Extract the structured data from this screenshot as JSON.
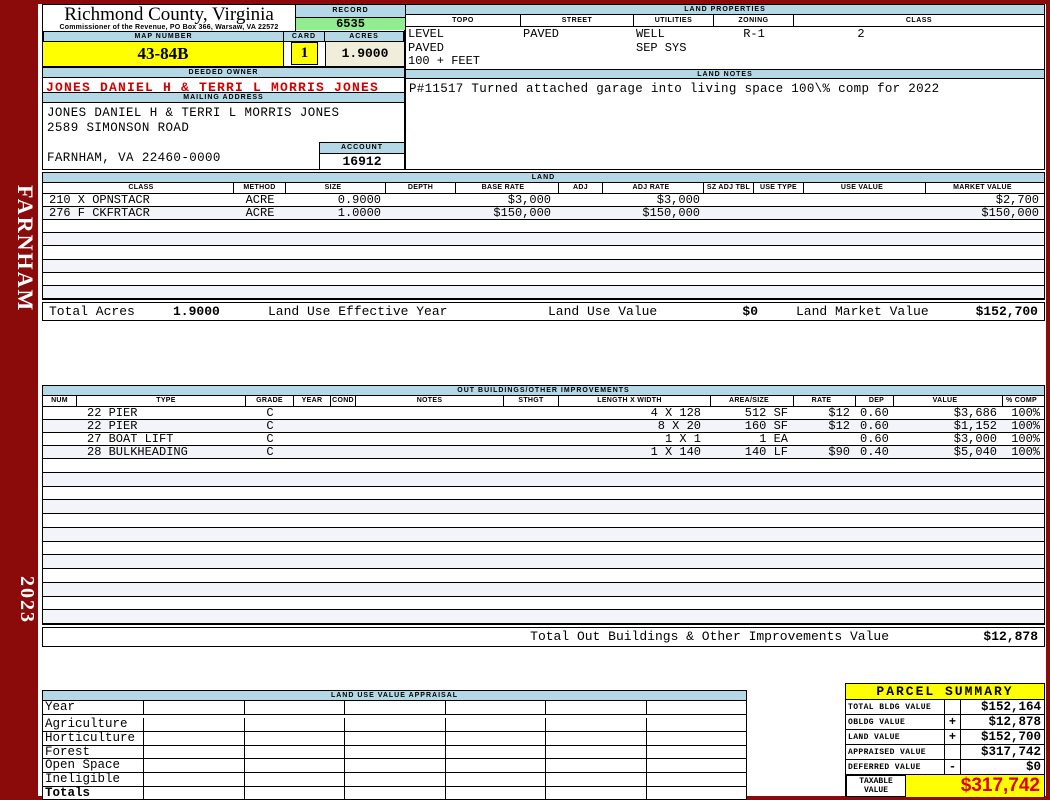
{
  "county": {
    "title": "Richmond County, Virginia",
    "subtitle": "Commissioner of the Revenue, PO Box 366, Warsaw, VA 22572"
  },
  "sidebar": {
    "district": "FARNHAM",
    "year": "2023"
  },
  "record": {
    "label": "RECORD",
    "value": "6535"
  },
  "map_number": {
    "label": "MAP NUMBER",
    "value": "43-84B"
  },
  "card": {
    "label": "CARD",
    "value": "1"
  },
  "acres": {
    "label": "ACRES",
    "value": "1.9000"
  },
  "deeded_owner": {
    "label": "DEEDED OWNER",
    "value": "JONES DANIEL H & TERRI L MORRIS JONES"
  },
  "mailing_address": {
    "label": "MAILING ADDRESS",
    "line1": "JONES DANIEL H & TERRI L MORRIS JONES",
    "line2": "2589 SIMONSON ROAD",
    "line3": "FARNHAM, VA 22460-0000"
  },
  "account": {
    "label": "ACCOUNT",
    "value": "16912"
  },
  "land_properties": {
    "title": "LAND PROPERTIES",
    "columns": [
      "TOPO",
      "STREET",
      "UTILITIES",
      "ZONING",
      "CLASS"
    ],
    "topo": [
      "LEVEL",
      "PAVED",
      "100 + FEET"
    ],
    "street": [
      "PAVED"
    ],
    "utilities": [
      "WELL",
      "SEP SYS"
    ],
    "zoning": [
      "R-1"
    ],
    "class_value": [
      "2"
    ]
  },
  "land_notes": {
    "title": "LAND NOTES",
    "note": "P#11517 Turned attached garage into living space 100\\% comp for 2022"
  },
  "land_table": {
    "title": "LAND",
    "columns": [
      "CLASS",
      "METHOD",
      "SIZE",
      "DEPTH",
      "BASE RATE",
      "ADJ",
      "ADJ RATE",
      "SZ ADJ TBL",
      "USE TYPE",
      "USE VALUE",
      "MARKET VALUE"
    ],
    "rows": [
      {
        "class": "210 X OPNSTACR",
        "method": "ACRE",
        "size": "0.9000",
        "depth": "",
        "base_rate": "$3,000",
        "adj": "",
        "adj_rate": "$3,000",
        "sz_adj_tbl": "",
        "use_type": "",
        "use_value": "",
        "market_value": "$2,700"
      },
      {
        "class": "276 F CKFRTACR",
        "method": "ACRE",
        "size": "1.0000",
        "depth": "",
        "base_rate": "$150,000",
        "adj": "",
        "adj_rate": "$150,000",
        "sz_adj_tbl": "",
        "use_type": "",
        "use_value": "",
        "market_value": "$150,000"
      }
    ],
    "empty_rows": 6,
    "totals": {
      "total_acres_label": "Total Acres",
      "total_acres": "1.9000",
      "effective_year_label": "Land Use Effective Year",
      "use_value_label": "Land Use Value",
      "use_value": "$0",
      "market_value_label": "Land Market Value",
      "market_value": "$152,700"
    }
  },
  "out_buildings": {
    "title": "OUT BUILDINGS/OTHER IMPROVEMENTS",
    "columns": [
      "NUM",
      "TYPE",
      "GRADE",
      "YEAR",
      "COND",
      "NOTES",
      "STHGT",
      "LENGTH X WIDTH",
      "AREA/SIZE",
      "RATE",
      "DEP",
      "VALUE",
      "% COMP"
    ],
    "rows": [
      {
        "type": "22 PIER",
        "grade": "C",
        "lxw": "4 X 128",
        "area": "512 SF",
        "rate": "$12",
        "dep": "0.60",
        "value": "$3,686",
        "comp": "100%"
      },
      {
        "type": "22 PIER",
        "grade": "C",
        "lxw": "8 X 20",
        "area": "160 SF",
        "rate": "$12",
        "dep": "0.60",
        "value": "$1,152",
        "comp": "100%"
      },
      {
        "type": "27 BOAT LIFT",
        "grade": "C",
        "lxw": "1 X 1",
        "area": "1 EA",
        "rate": "",
        "dep": "0.60",
        "value": "$3,000",
        "comp": "100%"
      },
      {
        "type": "28 BULKHEADING",
        "grade": "C",
        "lxw": "1 X 140",
        "area": "140 LF",
        "rate": "$90",
        "dep": "0.40",
        "value": "$5,040",
        "comp": "100%"
      }
    ],
    "empty_rows": 12,
    "total_label": "Total Out Buildings & Other Improvements Value",
    "total_value": "$12,878"
  },
  "land_use_appraisal": {
    "title": "LAND USE VALUE APPRAISAL",
    "row_labels": [
      "Year",
      "Agriculture",
      "Horticulture",
      "Forest",
      "Open Space",
      "Ineligible",
      "Totals"
    ],
    "column_count": 6
  },
  "parcel_summary": {
    "title": "PARCEL SUMMARY",
    "rows": [
      {
        "label": "TOTAL BLDG VALUE",
        "op": "",
        "value": "$152,164"
      },
      {
        "label": "OBLDG VALUE",
        "op": "+",
        "value": "$12,878"
      },
      {
        "label": "LAND VALUE",
        "op": "+",
        "value": "$152,700"
      },
      {
        "label": "APPRAISED VALUE",
        "op": "",
        "value": "$317,742"
      },
      {
        "label": "DEFERRED VALUE",
        "op": "-",
        "value": "$0"
      }
    ],
    "taxable": {
      "label": "TAXABLE VALUE",
      "value": "$317,742"
    }
  },
  "colors": {
    "frame_red": "#8B0B0B",
    "header_blue": "#B5D8E7",
    "record_green": "#90EE90",
    "highlight_yellow": "#FFFF00",
    "acres_cream": "#F0EEDA",
    "owner_red": "#D40000",
    "taxable_red": "#E00000",
    "row_stripe": "#F3F3FA"
  }
}
